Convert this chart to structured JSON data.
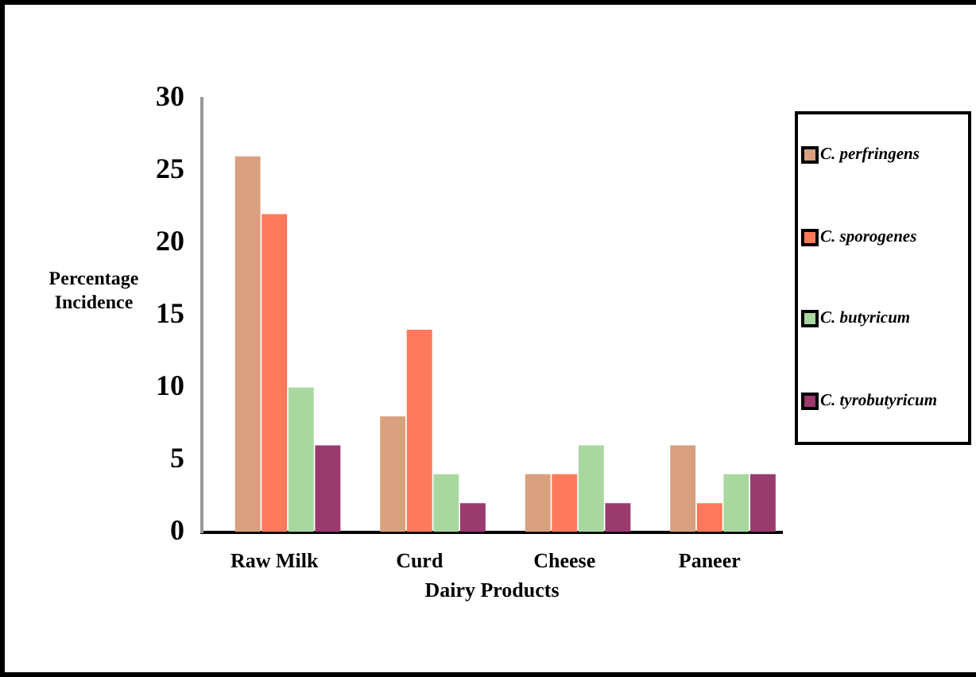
{
  "chart_data": {
    "type": "bar",
    "xlabel": "Dairy Products",
    "ylabel": "Percentage Incidence",
    "categories": [
      "Raw Milk",
      "Curd",
      "Cheese",
      "Paneer"
    ],
    "series": [
      {
        "color": "#3a3a8c",
        "values": [
          0,
          0,
          0,
          0
        ]
      },
      {
        "name": "C. perfringens",
        "color": "#d9a07f",
        "values": [
          26,
          8,
          4,
          6
        ]
      },
      {
        "name": "C. sporogenes",
        "color": "#ff7a5a",
        "values": [
          22,
          14,
          4,
          2
        ]
      },
      {
        "name": "C. butyricum",
        "color": "#a8d8a0",
        "values": [
          10,
          4,
          6,
          4
        ]
      },
      {
        "name": "C. tyrobutyricum",
        "color": "#9b3a6e",
        "values": [
          6,
          2,
          2,
          4
        ]
      }
    ],
    "ylim": [
      0,
      30
    ],
    "yticks": [
      0,
      5,
      10,
      15,
      20,
      25,
      30
    ],
    "grid": false,
    "legend": "right"
  }
}
